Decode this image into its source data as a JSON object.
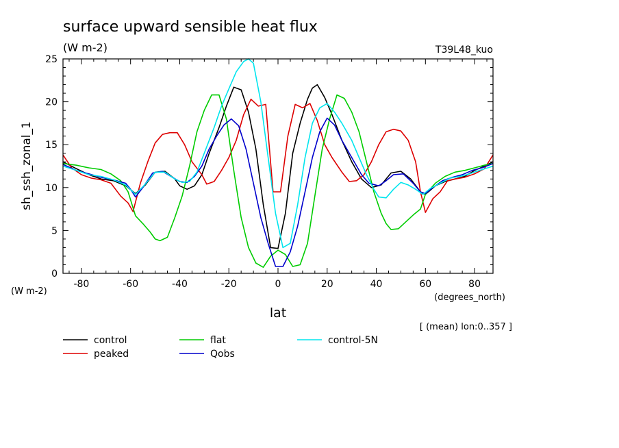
{
  "chart_data": {
    "type": "line",
    "title": "surface upward sensible heat flux",
    "units_label": "(W m-2)",
    "units_label_axis": "(W m-2)",
    "run_label": "T39L48_kuo",
    "ylabel": "sh_ssh_zonal_1",
    "xlabel": "lat",
    "x_unit_label": "(degrees_north)",
    "averaging_note": "[ (mean) lon:0..357 ]",
    "xlim": [
      -87.5,
      87.5
    ],
    "ylim": [
      0,
      25
    ],
    "x_ticks": [
      -80,
      -60,
      -40,
      -20,
      0,
      20,
      40,
      60,
      80
    ],
    "x_tick_labels": [
      "-80",
      "-60",
      "-40",
      "-20",
      "0",
      "20",
      "40",
      "60",
      "80"
    ],
    "y_ticks": [
      0,
      5,
      10,
      15,
      20,
      25
    ],
    "y_tick_labels": [
      "0",
      "5",
      "10",
      "15",
      "20",
      "25"
    ],
    "grid": false,
    "legend_placement": "bottom",
    "series": [
      {
        "name": "control",
        "color": "#000000",
        "points": [
          [
            -87.5,
            13.0
          ],
          [
            -82,
            12.2
          ],
          [
            -77,
            11.5
          ],
          [
            -72,
            11.0
          ],
          [
            -67,
            10.8
          ],
          [
            -62,
            10.2
          ],
          [
            -58,
            9.3
          ],
          [
            -54,
            10.3
          ],
          [
            -50,
            11.8
          ],
          [
            -46,
            11.9
          ],
          [
            -42,
            11.0
          ],
          [
            -40,
            10.2
          ],
          [
            -37,
            9.8
          ],
          [
            -34,
            10.2
          ],
          [
            -31,
            11.5
          ],
          [
            -28,
            14.0
          ],
          [
            -24,
            17.0
          ],
          [
            -21,
            19.5
          ],
          [
            -18,
            21.7
          ],
          [
            -15,
            21.4
          ],
          [
            -12,
            18.8
          ],
          [
            -9,
            14.5
          ],
          [
            -6,
            8.0
          ],
          [
            -3,
            3.0
          ],
          [
            0,
            2.9
          ],
          [
            3,
            7.0
          ],
          [
            6,
            14.0
          ],
          [
            9,
            17.5
          ],
          [
            12,
            20.3
          ],
          [
            14,
            21.6
          ],
          [
            16,
            22.0
          ],
          [
            19,
            20.5
          ],
          [
            22,
            18.5
          ],
          [
            26,
            15.5
          ],
          [
            30,
            13.0
          ],
          [
            34,
            11.0
          ],
          [
            38,
            10.0
          ],
          [
            42,
            10.3
          ],
          [
            46,
            11.7
          ],
          [
            50,
            11.9
          ],
          [
            54,
            11.0
          ],
          [
            58,
            9.5
          ],
          [
            60,
            9.2
          ],
          [
            64,
            10.2
          ],
          [
            68,
            10.7
          ],
          [
            72,
            11.0
          ],
          [
            76,
            11.3
          ],
          [
            80,
            12.0
          ],
          [
            84,
            12.5
          ],
          [
            87.5,
            13.0
          ]
        ]
      },
      {
        "name": "peaked",
        "color": "#dd0000",
        "points": [
          [
            -87.5,
            13.8
          ],
          [
            -84,
            12.3
          ],
          [
            -80,
            11.5
          ],
          [
            -76,
            11.1
          ],
          [
            -72,
            10.9
          ],
          [
            -68,
            10.5
          ],
          [
            -64,
            9.0
          ],
          [
            -61,
            8.2
          ],
          [
            -59,
            7.2
          ],
          [
            -56,
            10.5
          ],
          [
            -53,
            13.0
          ],
          [
            -50,
            15.2
          ],
          [
            -47,
            16.2
          ],
          [
            -44,
            16.4
          ],
          [
            -41,
            16.4
          ],
          [
            -38,
            15.0
          ],
          [
            -35,
            13.0
          ],
          [
            -31,
            11.5
          ],
          [
            -29,
            10.4
          ],
          [
            -26,
            10.7
          ],
          [
            -23,
            12.0
          ],
          [
            -20,
            13.5
          ],
          [
            -17,
            15.5
          ],
          [
            -14,
            18.5
          ],
          [
            -11,
            20.3
          ],
          [
            -8,
            19.5
          ],
          [
            -5,
            19.7
          ],
          [
            -2,
            9.5
          ],
          [
            1,
            9.5
          ],
          [
            4,
            16.0
          ],
          [
            7,
            19.7
          ],
          [
            10,
            19.3
          ],
          [
            13,
            19.8
          ],
          [
            16,
            17.8
          ],
          [
            19,
            15.0
          ],
          [
            22,
            13.5
          ],
          [
            26,
            11.8
          ],
          [
            29,
            10.7
          ],
          [
            32,
            10.8
          ],
          [
            35,
            11.5
          ],
          [
            38,
            13.0
          ],
          [
            41,
            15.0
          ],
          [
            44,
            16.5
          ],
          [
            47,
            16.8
          ],
          [
            50,
            16.6
          ],
          [
            53,
            15.5
          ],
          [
            56,
            13.0
          ],
          [
            58,
            9.5
          ],
          [
            60,
            7.1
          ],
          [
            63,
            8.7
          ],
          [
            66,
            9.5
          ],
          [
            69,
            10.8
          ],
          [
            72,
            11.0
          ],
          [
            76,
            11.2
          ],
          [
            80,
            11.6
          ],
          [
            84,
            12.2
          ],
          [
            87.5,
            13.8
          ]
        ]
      },
      {
        "name": "flat",
        "color": "#00cc00",
        "points": [
          [
            -87.5,
            12.8
          ],
          [
            -82,
            12.6
          ],
          [
            -77,
            12.3
          ],
          [
            -72,
            12.1
          ],
          [
            -68,
            11.6
          ],
          [
            -64,
            10.8
          ],
          [
            -61,
            9.5
          ],
          [
            -58,
            6.7
          ],
          [
            -55,
            5.8
          ],
          [
            -52,
            4.8
          ],
          [
            -50,
            4.0
          ],
          [
            -48,
            3.8
          ],
          [
            -45,
            4.2
          ],
          [
            -42,
            6.5
          ],
          [
            -39,
            9.0
          ],
          [
            -36,
            12.5
          ],
          [
            -33,
            16.5
          ],
          [
            -30,
            19.0
          ],
          [
            -27,
            20.8
          ],
          [
            -24,
            20.8
          ],
          [
            -21,
            18.0
          ],
          [
            -18,
            12.0
          ],
          [
            -15,
            6.5
          ],
          [
            -12,
            3.0
          ],
          [
            -9,
            1.2
          ],
          [
            -6,
            0.7
          ],
          [
            -3,
            2.0
          ],
          [
            0,
            2.7
          ],
          [
            3,
            2.2
          ],
          [
            6,
            0.8
          ],
          [
            9,
            1.0
          ],
          [
            12,
            3.5
          ],
          [
            15,
            9.0
          ],
          [
            18,
            14.5
          ],
          [
            21,
            18.0
          ],
          [
            24,
            20.8
          ],
          [
            27,
            20.4
          ],
          [
            30,
            18.8
          ],
          [
            33,
            16.5
          ],
          [
            36,
            13.0
          ],
          [
            39,
            9.5
          ],
          [
            42,
            7.0
          ],
          [
            44,
            5.8
          ],
          [
            46,
            5.1
          ],
          [
            49,
            5.2
          ],
          [
            52,
            6.0
          ],
          [
            55,
            6.8
          ],
          [
            58,
            7.5
          ],
          [
            60,
            9.2
          ],
          [
            64,
            10.5
          ],
          [
            68,
            11.3
          ],
          [
            72,
            11.8
          ],
          [
            76,
            12.0
          ],
          [
            80,
            12.3
          ],
          [
            84,
            12.6
          ],
          [
            87.5,
            12.8
          ]
        ]
      },
      {
        "name": "Qobs",
        "color": "#0000cc",
        "points": [
          [
            -87.5,
            12.7
          ],
          [
            -82,
            12.0
          ],
          [
            -77,
            11.6
          ],
          [
            -72,
            11.2
          ],
          [
            -67,
            10.9
          ],
          [
            -62,
            10.5
          ],
          [
            -60,
            9.8
          ],
          [
            -58,
            8.9
          ],
          [
            -55,
            10.0
          ],
          [
            -51,
            11.7
          ],
          [
            -47,
            11.9
          ],
          [
            -43,
            11.2
          ],
          [
            -40,
            10.7
          ],
          [
            -37,
            10.6
          ],
          [
            -34,
            11.3
          ],
          [
            -31,
            12.5
          ],
          [
            -28,
            14.5
          ],
          [
            -25,
            16.0
          ],
          [
            -22,
            17.3
          ],
          [
            -19,
            18.0
          ],
          [
            -16,
            17.2
          ],
          [
            -13,
            14.5
          ],
          [
            -10,
            10.5
          ],
          [
            -7,
            6.5
          ],
          [
            -4,
            3.5
          ],
          [
            -1,
            0.8
          ],
          [
            2,
            0.8
          ],
          [
            5,
            2.5
          ],
          [
            8,
            5.5
          ],
          [
            11,
            9.5
          ],
          [
            14,
            13.5
          ],
          [
            17,
            16.5
          ],
          [
            20,
            18.1
          ],
          [
            23,
            17.3
          ],
          [
            26,
            15.5
          ],
          [
            30,
            13.5
          ],
          [
            34,
            11.5
          ],
          [
            37,
            10.5
          ],
          [
            41,
            10.2
          ],
          [
            44,
            10.8
          ],
          [
            47,
            11.5
          ],
          [
            51,
            11.6
          ],
          [
            55,
            10.5
          ],
          [
            58,
            9.5
          ],
          [
            60,
            9.3
          ],
          [
            63,
            10.0
          ],
          [
            67,
            10.8
          ],
          [
            71,
            11.2
          ],
          [
            75,
            11.5
          ],
          [
            79,
            12.0
          ],
          [
            83,
            12.3
          ],
          [
            87.5,
            12.8
          ]
        ]
      },
      {
        "name": "control-5N",
        "color": "#00e5ee",
        "points": [
          [
            -87.5,
            12.5
          ],
          [
            -82,
            12.0
          ],
          [
            -77,
            11.5
          ],
          [
            -72,
            11.3
          ],
          [
            -67,
            10.9
          ],
          [
            -62,
            10.3
          ],
          [
            -58,
            9.2
          ],
          [
            -54,
            10.4
          ],
          [
            -50,
            11.8
          ],
          [
            -46,
            11.8
          ],
          [
            -42,
            11.0
          ],
          [
            -39,
            10.6
          ],
          [
            -36,
            10.7
          ],
          [
            -33,
            11.8
          ],
          [
            -30,
            14.0
          ],
          [
            -26,
            17.0
          ],
          [
            -23,
            19.5
          ],
          [
            -20,
            21.5
          ],
          [
            -17,
            23.5
          ],
          [
            -14,
            24.7
          ],
          [
            -12,
            25.0
          ],
          [
            -10,
            24.5
          ],
          [
            -7,
            20.0
          ],
          [
            -4,
            13.5
          ],
          [
            -1,
            7.0
          ],
          [
            2,
            3.0
          ],
          [
            5,
            3.5
          ],
          [
            8,
            8.0
          ],
          [
            11,
            13.5
          ],
          [
            14,
            17.5
          ],
          [
            17,
            19.3
          ],
          [
            20,
            19.8
          ],
          [
            23,
            18.8
          ],
          [
            26,
            17.5
          ],
          [
            30,
            15.5
          ],
          [
            33,
            13.5
          ],
          [
            36,
            11.5
          ],
          [
            39,
            9.8
          ],
          [
            41,
            8.9
          ],
          [
            44,
            8.8
          ],
          [
            47,
            9.8
          ],
          [
            50,
            10.6
          ],
          [
            53,
            10.3
          ],
          [
            56,
            9.8
          ],
          [
            59,
            9.2
          ],
          [
            62,
            9.9
          ],
          [
            66,
            10.5
          ],
          [
            70,
            11.1
          ],
          [
            74,
            11.3
          ],
          [
            78,
            11.6
          ],
          [
            82,
            12.0
          ],
          [
            87.5,
            12.5
          ]
        ]
      }
    ]
  }
}
